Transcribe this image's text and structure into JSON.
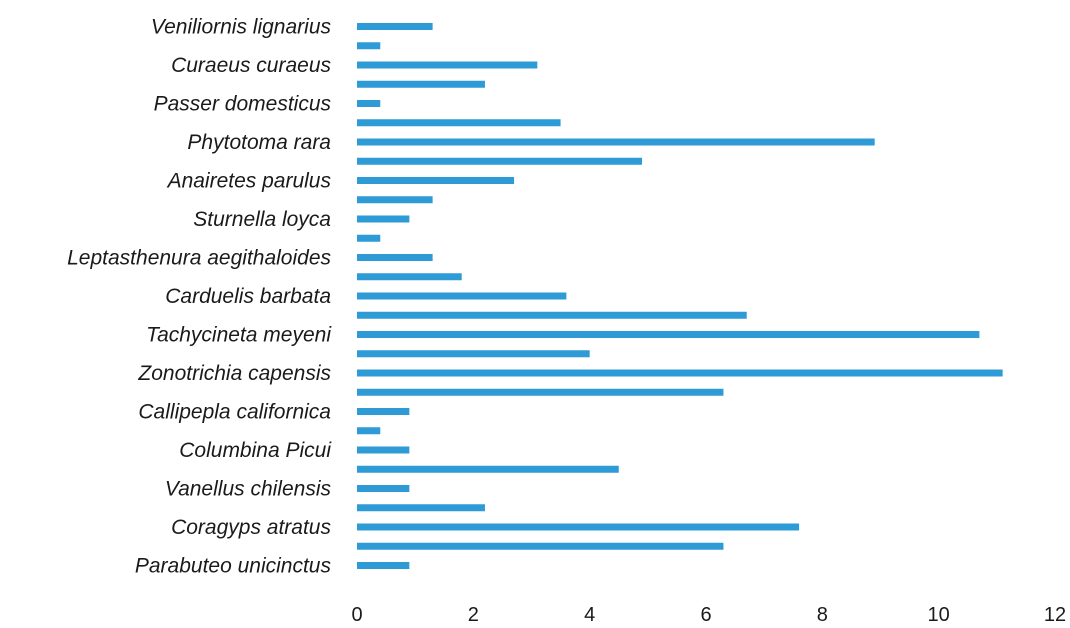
{
  "chart_data": {
    "type": "bar",
    "orientation": "horizontal",
    "labeled_categories": [
      "Veniliornis lignarius",
      "Curaeus curaeus",
      "Passer domesticus",
      "Phytotoma rara",
      "Anairetes parulus",
      "Sturnella loyca",
      "Leptasthenura aegithaloides",
      "Carduelis barbata",
      "Tachycineta meyeni",
      "Zonotrichia capensis",
      "Callipepla californica",
      "Columbina Picui",
      "Vanellus chilensis",
      "Coragyps atratus",
      "Parabuteo unicinctus"
    ],
    "values_top_to_bottom": [
      1.3,
      0.4,
      3.1,
      2.2,
      0.4,
      3.5,
      8.9,
      4.9,
      2.7,
      1.3,
      0.9,
      0.4,
      1.3,
      1.8,
      3.6,
      6.7,
      10.7,
      4.0,
      11.1,
      6.3,
      0.9,
      0.4,
      0.9,
      4.5,
      0.9,
      2.2,
      7.6,
      6.3,
      0.9
    ],
    "x_ticks": [
      "0",
      "2",
      "4",
      "6",
      "8",
      "10",
      "12"
    ],
    "xlim": [
      0,
      12
    ],
    "bar_color": "#2e9bd6",
    "grid": false,
    "legend": "none",
    "title": "",
    "xlabel": "",
    "ylabel": ""
  }
}
